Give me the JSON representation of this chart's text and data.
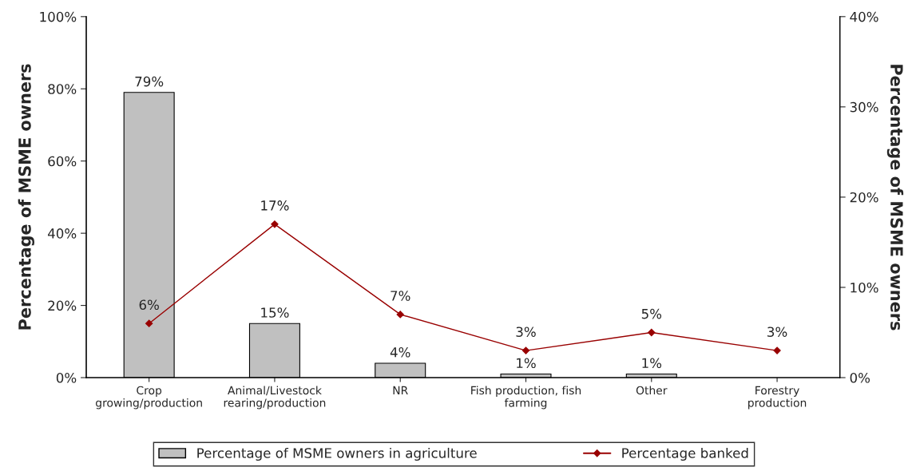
{
  "chart_data": {
    "type": "bar",
    "categories": [
      "Crop growing/production",
      "Animal/Livestock rearing/production",
      "NR",
      "Fish production, fish farming",
      "Other",
      "Forestry production"
    ],
    "ylabel": "Percentage of MSME owners",
    "y2label": "Percentage of MSME owners",
    "ylim": [
      0,
      100
    ],
    "yticks": [
      {
        "value": 0,
        "label": "0%"
      },
      {
        "value": 20,
        "label": "20%"
      },
      {
        "value": 40,
        "label": "40%"
      },
      {
        "value": 60,
        "label": "60%"
      },
      {
        "value": 80,
        "label": "80%"
      },
      {
        "value": 100,
        "label": "100%"
      }
    ],
    "y2lim": [
      0,
      40
    ],
    "y2ticks": [
      {
        "value": 0,
        "label": "0%"
      },
      {
        "value": 10,
        "label": "10%"
      },
      {
        "value": 20,
        "label": "20%"
      },
      {
        "value": 30,
        "label": "30%"
      },
      {
        "value": 40,
        "label": "40%"
      }
    ],
    "series": [
      {
        "name": "Percentage of MSME owners in agriculture",
        "color": "#c0c0c0",
        "values": [
          79,
          15,
          4,
          1,
          1,
          null
        ],
        "value_labels": [
          "79%",
          "15%",
          "4%",
          "1%",
          "1%",
          null
        ]
      },
      {
        "name": "Percentage banked",
        "type": "line",
        "axis": "y2",
        "color": "#990000",
        "marker": "diamond",
        "values": [
          6,
          17,
          7,
          3,
          5,
          3
        ],
        "value_labels": [
          "6%",
          "17%",
          "7%",
          "3%",
          "5%",
          "3%"
        ]
      }
    ],
    "legend": "bottom",
    "grid": false
  }
}
